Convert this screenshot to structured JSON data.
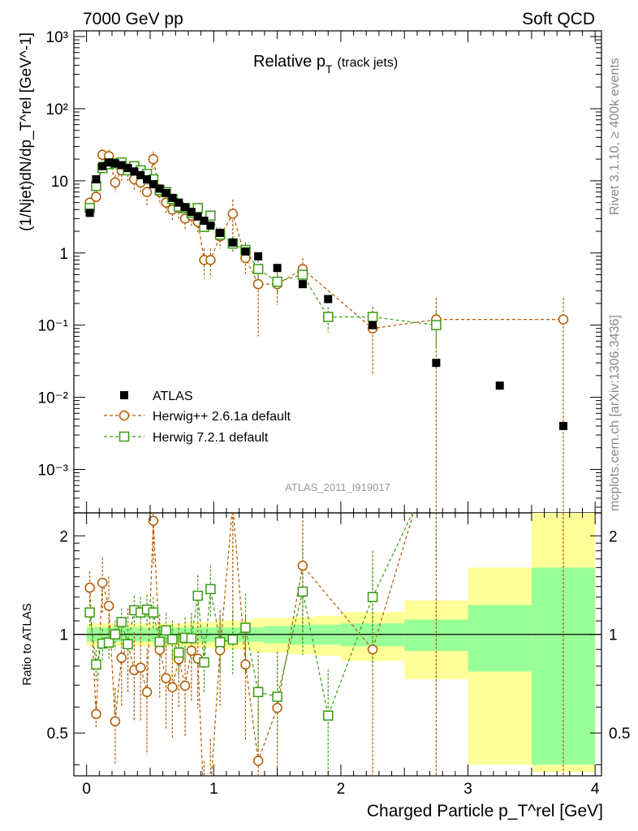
{
  "header": {
    "left": "7000 GeV pp",
    "right": "Soft QCD"
  },
  "plot_title": {
    "main": "Relative p",
    "sub": "T",
    "suffix": "(track jets)"
  },
  "side_text": {
    "rivet": "Rivet 3.1.10, ≥ 400k events",
    "mcplots": "mcplots.cern.ch [arXiv:1306.3436]"
  },
  "watermark": "ATLAS_2011_I919017",
  "legend": [
    {
      "label": "ATLAS",
      "marker": "square-filled",
      "color": "#000000"
    },
    {
      "label": "Herwig++ 2.6.1a default",
      "marker": "circle-open",
      "color": "#b35900"
    },
    {
      "label": "Herwig 7.2.1 default",
      "marker": "square-open",
      "color": "#3a9a12"
    }
  ],
  "colors": {
    "data": "#000000",
    "herwigpp": "#b35900",
    "herwig7": "#3a9a12",
    "band_inner": "#99ff99",
    "band_outer": "#ffff99"
  },
  "chart_data": {
    "type": "scatter",
    "title": "Relative pT (track jets)",
    "xlabel": "Charged Particle p_T^rel [GeV]",
    "ylabel": "(1/Njet)dN/dp_T^rel [GeV^-1]",
    "ratio_ylabel": "Ratio to ATLAS",
    "xlim": [
      -0.1,
      4.05
    ],
    "ylim": [
      0.00025,
      1200
    ],
    "ratio_ylim": [
      0.37,
      2.35
    ],
    "yscale": "log",
    "x_ticks": [
      "0",
      "1",
      "2",
      "3",
      "4"
    ],
    "y_ticks": [
      "10⁻³",
      "10⁻²",
      "10⁻¹",
      "1",
      "10",
      "10²",
      "10³"
    ],
    "ratio_ticks": [
      "0.5",
      "1",
      "2"
    ],
    "series": [
      {
        "name": "ATLAS",
        "x": [
          0.025,
          0.075,
          0.125,
          0.175,
          0.225,
          0.275,
          0.325,
          0.375,
          0.425,
          0.475,
          0.525,
          0.575,
          0.625,
          0.675,
          0.725,
          0.775,
          0.825,
          0.875,
          0.925,
          0.975,
          1.05,
          1.15,
          1.25,
          1.35,
          1.5,
          1.7,
          1.9,
          2.25,
          2.75,
          3.25,
          3.75
        ],
        "y": [
          3.6,
          10.5,
          16.0,
          18.0,
          17.5,
          16.5,
          15.0,
          13.5,
          12.0,
          10.5,
          9.0,
          7.8,
          6.8,
          5.8,
          5.0,
          4.3,
          3.7,
          3.2,
          2.8,
          2.4,
          1.9,
          1.4,
          1.05,
          0.9,
          0.62,
          0.37,
          0.23,
          0.1,
          0.03,
          0.0145,
          0.004
        ]
      },
      {
        "name": "Herwig++ 2.6.1a default",
        "x": [
          0.025,
          0.075,
          0.125,
          0.175,
          0.225,
          0.275,
          0.325,
          0.375,
          0.425,
          0.475,
          0.525,
          0.575,
          0.625,
          0.675,
          0.725,
          0.775,
          0.825,
          0.875,
          0.925,
          0.975,
          1.05,
          1.15,
          1.25,
          1.35,
          1.5,
          1.7,
          2.25,
          2.75,
          3.75
        ],
        "y": [
          5.0,
          6.0,
          23.0,
          22.0,
          9.5,
          14.0,
          14.0,
          10.5,
          9.5,
          7.0,
          20.0,
          7.0,
          5.0,
          4.0,
          4.2,
          3.0,
          3.3,
          2.7,
          0.8,
          0.8,
          1.7,
          3.5,
          0.85,
          0.37,
          0.37,
          0.6,
          0.09,
          0.12,
          0.12
        ],
        "yerr": [
          0.6,
          0.6,
          4.5,
          5,
          2.5,
          4,
          4,
          3.2,
          3,
          2.5,
          5.5,
          2,
          1.5,
          1.2,
          1.2,
          0.9,
          1.0,
          0.8,
          0.35,
          0.35,
          0.55,
          2.0,
          0.35,
          0.3,
          0.18,
          0.25,
          0.07,
          0.12,
          0.12
        ]
      },
      {
        "name": "Herwig 7.2.1 default",
        "x": [
          0.025,
          0.075,
          0.125,
          0.175,
          0.225,
          0.275,
          0.325,
          0.375,
          0.425,
          0.475,
          0.525,
          0.575,
          0.625,
          0.675,
          0.725,
          0.775,
          0.825,
          0.875,
          0.925,
          0.975,
          1.05,
          1.15,
          1.25,
          1.35,
          1.5,
          1.7,
          1.9,
          2.25,
          2.75
        ],
        "y": [
          4.2,
          8.5,
          15.0,
          17.0,
          17.5,
          18.0,
          14.0,
          16.0,
          14.0,
          12.5,
          10.5,
          7.4,
          7.0,
          5.6,
          4.4,
          4.2,
          3.6,
          4.2,
          2.3,
          3.3,
          1.8,
          1.35,
          1.1,
          0.6,
          0.4,
          0.5,
          0.13,
          0.13,
          0.1
        ],
        "yerr": [
          0.4,
          0.9,
          1.6,
          1.8,
          1.8,
          1.8,
          1.6,
          1.7,
          1.6,
          1.4,
          1.2,
          0.9,
          0.9,
          0.8,
          0.65,
          0.65,
          0.6,
          0.65,
          0.45,
          0.6,
          0.35,
          0.3,
          0.3,
          0.2,
          0.12,
          0.18,
          0.05,
          0.05,
          0.05
        ]
      }
    ],
    "ratio_band": {
      "edges": [
        0,
        0.05,
        0.1,
        0.15,
        0.2,
        0.25,
        0.3,
        0.35,
        0.4,
        0.45,
        0.5,
        0.55,
        0.6,
        0.65,
        0.7,
        0.75,
        0.8,
        0.85,
        0.9,
        0.95,
        1.0,
        1.1,
        1.2,
        1.3,
        1.4,
        1.6,
        1.8,
        2.0,
        2.5,
        3.0,
        3.5,
        4.0
      ],
      "inner": [
        0.05,
        0.05,
        0.05,
        0.05,
        0.05,
        0.05,
        0.05,
        0.05,
        0.05,
        0.05,
        0.05,
        0.05,
        0.05,
        0.05,
        0.05,
        0.05,
        0.05,
        0.05,
        0.05,
        0.05,
        0.05,
        0.05,
        0.05,
        0.05,
        0.06,
        0.07,
        0.07,
        0.08,
        0.11,
        0.23,
        0.6
      ],
      "outer": [
        0.08,
        0.08,
        0.08,
        0.08,
        0.08,
        0.08,
        0.08,
        0.08,
        0.08,
        0.08,
        0.08,
        0.08,
        0.08,
        0.08,
        0.08,
        0.08,
        0.09,
        0.09,
        0.09,
        0.09,
        0.1,
        0.1,
        0.1,
        0.12,
        0.12,
        0.13,
        0.14,
        0.17,
        0.27,
        0.6,
        1.4
      ]
    }
  }
}
